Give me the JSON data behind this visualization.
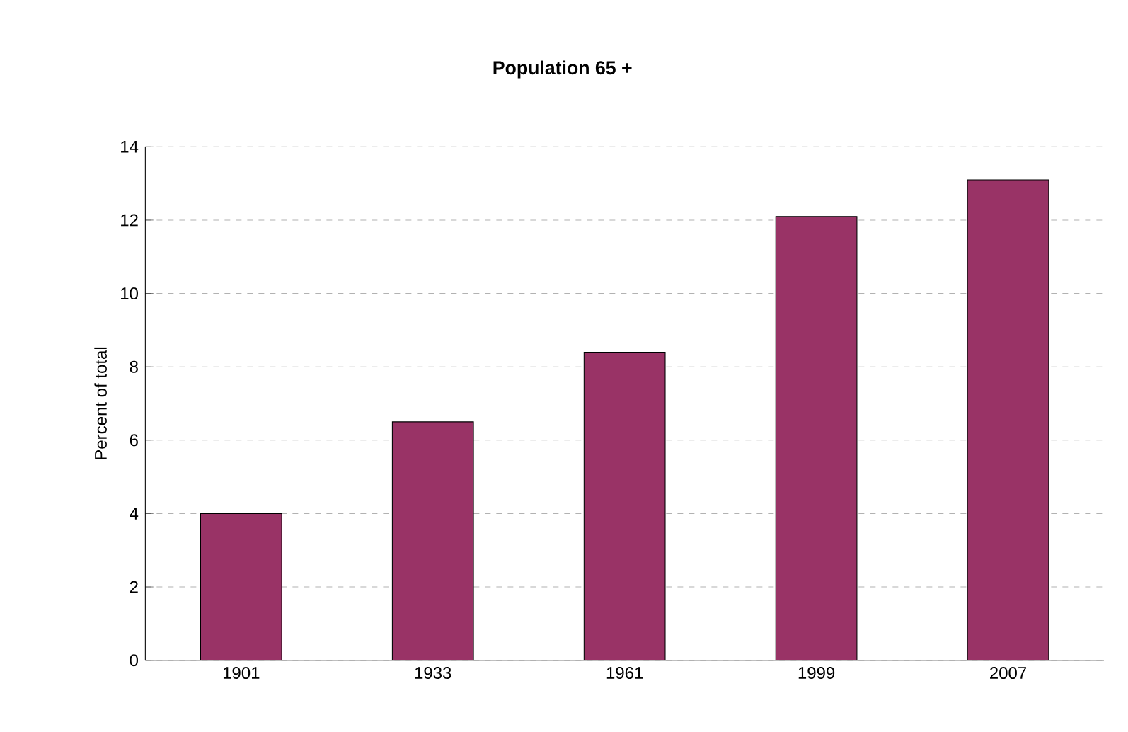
{
  "chart_data": {
    "type": "bar",
    "title": "Population 65 +",
    "ylabel": "Percent of total",
    "categories": [
      "1901",
      "1933",
      "1961",
      "1999",
      "2007"
    ],
    "values": [
      4.0,
      6.5,
      8.4,
      12.1,
      13.1
    ],
    "color": "#993366",
    "ylim": [
      0,
      14
    ],
    "yticks": [
      0,
      2,
      4,
      6,
      8,
      10,
      12,
      14
    ],
    "grid": "y"
  }
}
